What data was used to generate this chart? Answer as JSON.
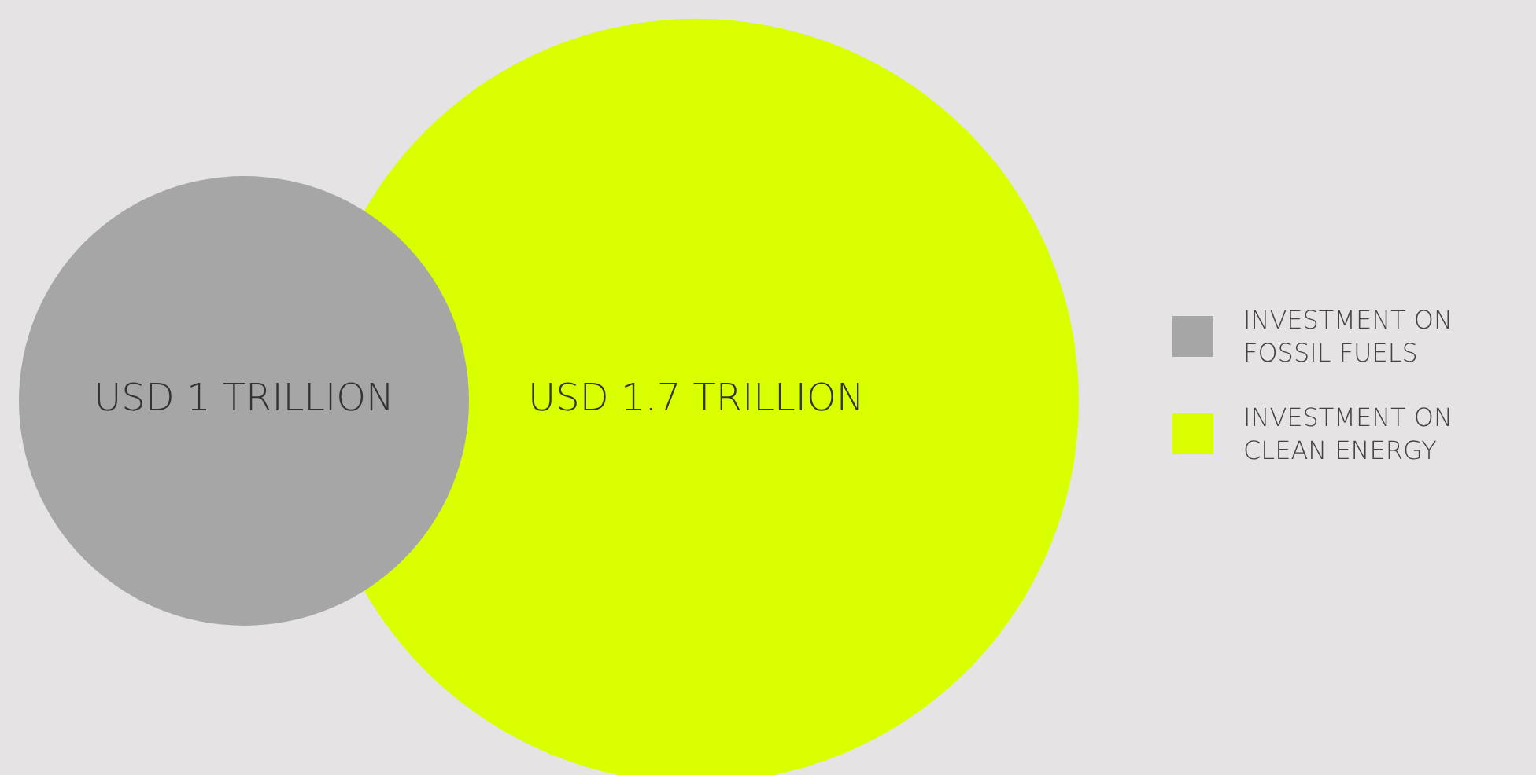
{
  "chart_data": {
    "type": "other",
    "categories": [
      "INVESTMENT ON FOSSIL FUELS",
      "INVESTMENT ON CLEAN ENERGY"
    ],
    "values": [
      1,
      1.7
    ],
    "colors": [
      "#a6a6a6",
      "#d9ff00"
    ],
    "value_labels": [
      "USD 1 TRILLION",
      "USD 1.7 TRILLION"
    ]
  }
}
